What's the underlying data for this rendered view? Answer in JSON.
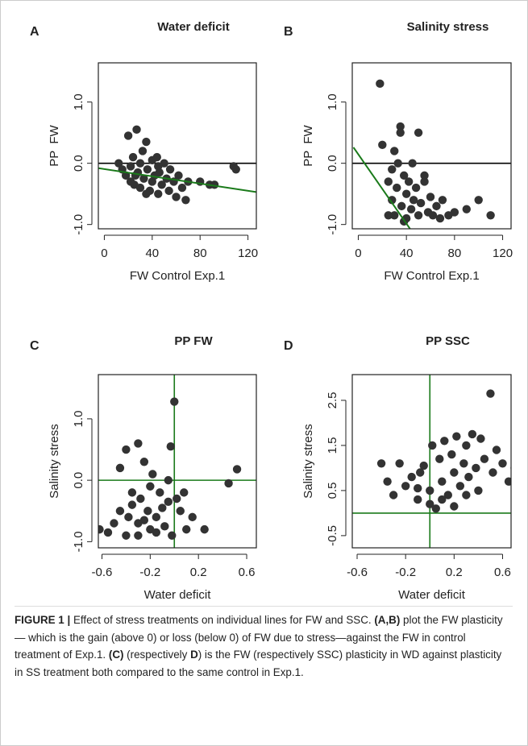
{
  "chart_data": [
    {
      "type": "scatter",
      "label": "A",
      "title": "Water deficit",
      "x_label": "FW Control Exp.1",
      "y_label": "PP  FW",
      "x": [
        12,
        15,
        18,
        20,
        22,
        24,
        25,
        27,
        28,
        30,
        30,
        32,
        33,
        35,
        36,
        38,
        40,
        40,
        42,
        44,
        45,
        46,
        48,
        50,
        52,
        54,
        55,
        58,
        60,
        62,
        65,
        68,
        70,
        22,
        35,
        26,
        45,
        80,
        88,
        108,
        110,
        92
      ],
      "values": [
        0.0,
        -0.1,
        -0.2,
        0.45,
        -0.3,
        0.1,
        -0.35,
        0.55,
        -0.15,
        0.0,
        -0.4,
        0.2,
        -0.25,
        0.35,
        -0.1,
        -0.45,
        0.05,
        -0.3,
        -0.2,
        0.1,
        -0.5,
        -0.15,
        -0.35,
        0.0,
        -0.25,
        -0.45,
        -0.1,
        -0.3,
        -0.55,
        -0.2,
        -0.4,
        -0.6,
        -0.3,
        -0.05,
        -0.5,
        -0.2,
        -0.05,
        -0.3,
        -0.35,
        -0.05,
        -0.1,
        -0.35
      ],
      "color": "#333333",
      "xlim": [
        -5,
        127
      ],
      "ylim": [
        -1.07,
        1.64
      ],
      "xticks": [
        0,
        40,
        80,
        120
      ],
      "yticks": [
        {
          "value": -1,
          "label": "-1.0"
        },
        {
          "value": 0,
          "label": "0.0"
        },
        {
          "value": 1,
          "label": "1.0"
        }
      ],
      "hlines": [
        {
          "value": 0,
          "color": "#000000"
        }
      ],
      "vlines": [],
      "fit_line": {
        "x": [
          -5,
          127
        ],
        "y": [
          -0.08,
          -0.47
        ],
        "color": "#1a7a1a"
      }
    },
    {
      "type": "scatter",
      "label": "B",
      "title": "Salinity stress",
      "x_label": "FW Control Exp.1",
      "y_label": "PP  FW",
      "x": [
        18,
        20,
        25,
        28,
        30,
        30,
        32,
        33,
        35,
        35,
        36,
        38,
        40,
        40,
        42,
        44,
        45,
        46,
        48,
        50,
        50,
        52,
        55,
        58,
        60,
        62,
        65,
        68,
        70,
        75,
        80,
        90,
        100,
        110,
        25,
        28,
        38,
        55
      ],
      "values": [
        1.3,
        0.3,
        -0.3,
        -0.6,
        0.2,
        -0.85,
        -0.4,
        0.0,
        0.6,
        0.5,
        -0.7,
        -0.2,
        -0.5,
        -0.9,
        -0.3,
        -0.75,
        0.0,
        -0.6,
        -0.4,
        0.5,
        -0.85,
        -0.65,
        -0.3,
        -0.8,
        -0.55,
        -0.85,
        -0.7,
        -0.9,
        -0.6,
        -0.85,
        -0.8,
        -0.75,
        -0.6,
        -0.85,
        -0.85,
        -0.1,
        -0.95,
        -0.2
      ],
      "color": "#333333",
      "xlim": [
        -5,
        127
      ],
      "ylim": [
        -1.07,
        1.64
      ],
      "xticks": [
        0,
        40,
        80,
        120
      ],
      "yticks": [
        {
          "value": -1,
          "label": "-1.0"
        },
        {
          "value": 0,
          "label": "0.0"
        },
        {
          "value": 1,
          "label": "1.0"
        }
      ],
      "hlines": [
        {
          "value": 0,
          "color": "#000000"
        }
      ],
      "vlines": [],
      "fit_line": {
        "x": [
          -4,
          43
        ],
        "y": [
          0.26,
          -1.07
        ],
        "color": "#1a7a1a"
      }
    },
    {
      "type": "scatter",
      "label": "C",
      "title": "PP FW",
      "x_label": "Water deficit",
      "y_label": "Salinity stress",
      "x": [
        -0.62,
        -0.55,
        -0.5,
        -0.45,
        -0.4,
        -0.38,
        -0.35,
        -0.3,
        -0.3,
        -0.28,
        -0.25,
        -0.22,
        -0.2,
        -0.2,
        -0.18,
        -0.15,
        -0.12,
        -0.1,
        -0.08,
        -0.05,
        -0.03,
        0.0,
        0.02,
        0.05,
        0.08,
        0.1,
        0.15,
        0.25,
        0.45,
        0.52,
        -0.4,
        -0.3,
        -0.45,
        -0.25,
        -0.02,
        -0.05,
        -0.35,
        -0.15
      ],
      "values": [
        -0.8,
        -0.85,
        -0.7,
        0.2,
        0.5,
        -0.6,
        -0.4,
        0.6,
        -0.9,
        -0.3,
        0.3,
        -0.5,
        -0.1,
        -0.8,
        0.1,
        -0.6,
        -0.2,
        -0.45,
        -0.75,
        0.0,
        0.55,
        1.28,
        -0.3,
        -0.5,
        -0.2,
        -0.8,
        -0.6,
        -0.8,
        -0.05,
        0.18,
        -0.9,
        -0.7,
        -0.5,
        -0.65,
        -0.9,
        -0.35,
        -0.2,
        -0.85
      ],
      "color": "#333333",
      "xlim": [
        -0.63,
        0.68
      ],
      "ylim": [
        -1.1,
        1.72
      ],
      "xticks": [
        -0.6,
        -0.2,
        0.2,
        0.6
      ],
      "yticks": [
        {
          "value": -1,
          "label": "-1.0"
        },
        {
          "value": 0,
          "label": "0.0"
        },
        {
          "value": 1,
          "label": "1.0"
        }
      ],
      "hlines": [
        {
          "value": 0,
          "color": "#1a7a1a"
        }
      ],
      "vlines": [
        {
          "value": 0,
          "color": "#1a7a1a"
        }
      ]
    },
    {
      "type": "scatter",
      "label": "D",
      "title": "PP SSC",
      "x_label": "Water deficit",
      "y_label": "Salinity stress",
      "x": [
        -0.4,
        -0.35,
        -0.3,
        -0.25,
        -0.2,
        -0.15,
        -0.1,
        -0.08,
        -0.05,
        0.0,
        0.02,
        0.05,
        0.08,
        0.1,
        0.12,
        0.15,
        0.18,
        0.2,
        0.22,
        0.25,
        0.28,
        0.3,
        0.32,
        0.35,
        0.38,
        0.4,
        0.42,
        0.45,
        0.5,
        0.52,
        0.55,
        0.6,
        0.65,
        0.7,
        0.75,
        0.0,
        0.1,
        0.2,
        0.3,
        -0.1
      ],
      "values": [
        1.1,
        0.7,
        0.4,
        1.1,
        0.6,
        0.8,
        0.3,
        0.9,
        1.05,
        0.5,
        1.5,
        0.1,
        1.2,
        0.7,
        1.6,
        0.4,
        1.3,
        0.9,
        1.7,
        0.6,
        1.1,
        1.5,
        0.8,
        1.75,
        1.0,
        0.5,
        1.65,
        1.2,
        2.65,
        0.9,
        1.4,
        1.1,
        0.7,
        1.0,
        0.45,
        0.2,
        0.3,
        0.15,
        0.4,
        0.55
      ],
      "color": "#333333",
      "xlim": [
        -0.64,
        0.67
      ],
      "ylim": [
        -0.77,
        3.07
      ],
      "xticks": [
        -0.6,
        -0.2,
        0.2,
        0.6
      ],
      "yticks": [
        -0.5,
        0.5,
        1.5,
        2.5
      ],
      "hlines": [
        {
          "value": 0,
          "color": "#1a7a1a"
        }
      ],
      "vlines": [
        {
          "value": 0,
          "color": "#1a7a1a"
        }
      ]
    }
  ],
  "caption": [
    {
      "text": "FIGURE 1 |",
      "bold": true
    },
    {
      "text": " Effect of stress treatments on individual lines for FW and SSC. ",
      "bold": false
    },
    {
      "text": "(A,B)",
      "bold": true
    },
    {
      "text": " plot the FW plasticity— which is the gain (above 0) or loss (below 0) of FW due to stress—against the FW in control treatment of Exp.1. ",
      "bold": false
    },
    {
      "text": "(C)",
      "bold": true
    },
    {
      "text": " (respectively ",
      "bold": false
    },
    {
      "text": "D",
      "bold": true
    },
    {
      "text": ") is the FW (respectively SSC) plasticity in WD against plasticity in SS treatment both compared to the same control in Exp.1.",
      "bold": false
    }
  ]
}
